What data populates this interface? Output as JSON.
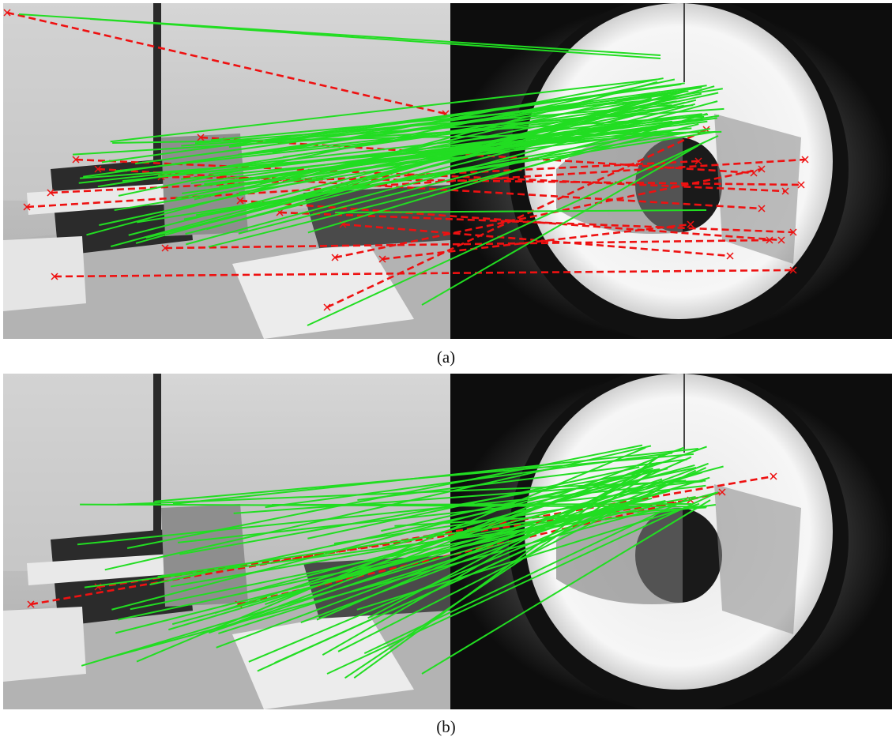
{
  "figure": {
    "panels": [
      {
        "caption": "(a)"
      },
      {
        "caption": "(b)"
      }
    ]
  },
  "colors": {
    "inlier": "#22dd22",
    "outlier": "#ee1111",
    "background": "#ffffff"
  }
}
